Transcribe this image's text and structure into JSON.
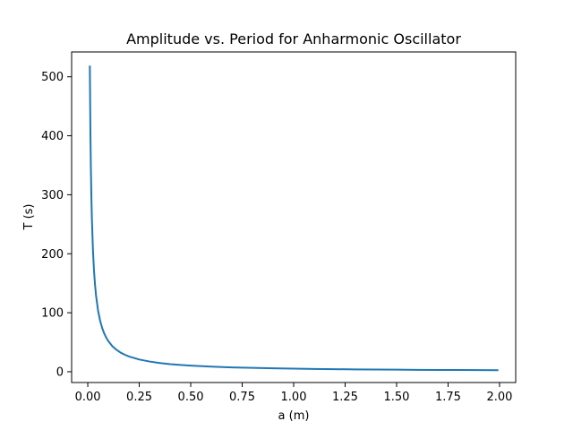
{
  "chart_data": {
    "type": "line",
    "title": "Amplitude vs. Period for Anharmonic Oscillator",
    "xlabel": "a (m)",
    "ylabel": "T (s)",
    "xlim": [
      -0.0785,
      2.0785
    ],
    "ylim": [
      -18.3,
      542.1
    ],
    "xticks": [
      0.0,
      0.25,
      0.5,
      0.75,
      1.0,
      1.25,
      1.5,
      1.75,
      2.0
    ],
    "xtick_labels": [
      "0.00",
      "0.25",
      "0.50",
      "0.75",
      "1.00",
      "1.25",
      "1.50",
      "1.75",
      "2.00"
    ],
    "yticks": [
      0,
      100,
      200,
      300,
      400,
      500
    ],
    "ytick_labels": [
      "0",
      "100",
      "200",
      "300",
      "400",
      "500"
    ],
    "grid": false,
    "series": [
      {
        "color": "#1f77b4",
        "x": [
          0.01,
          0.0125,
          0.015,
          0.0175,
          0.02,
          0.025,
          0.03,
          0.035,
          0.04,
          0.05,
          0.06,
          0.07,
          0.08,
          0.09,
          0.1,
          0.12,
          0.14,
          0.16,
          0.18,
          0.2,
          0.25,
          0.3,
          0.35,
          0.4,
          0.45,
          0.5,
          0.6,
          0.7,
          0.8,
          0.9,
          1.0,
          1.1,
          1.2,
          1.3,
          1.4,
          1.5,
          1.6,
          1.7,
          1.8,
          1.9,
          1.99
        ],
        "y": [
          517.5,
          414.0,
          345.0,
          295.7,
          258.8,
          207.0,
          172.5,
          147.9,
          129.4,
          103.5,
          86.3,
          73.9,
          64.7,
          57.5,
          51.8,
          43.1,
          37.0,
          32.3,
          28.8,
          25.9,
          20.7,
          17.3,
          14.8,
          12.9,
          11.5,
          10.4,
          8.6,
          7.4,
          6.5,
          5.8,
          5.2,
          4.7,
          4.3,
          4.0,
          3.7,
          3.5,
          3.2,
          3.0,
          2.9,
          2.7,
          2.6
        ]
      }
    ]
  }
}
